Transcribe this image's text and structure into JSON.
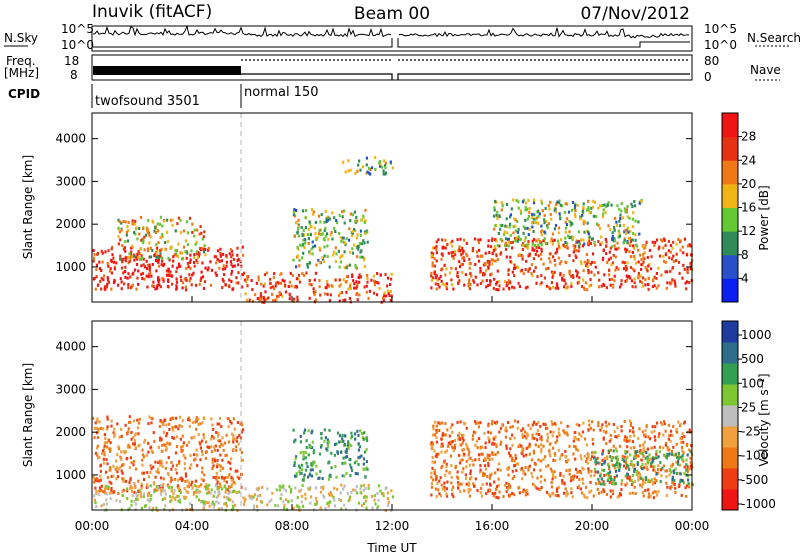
{
  "header": {
    "station": "Inuvik (fitACF)",
    "beam": "Beam 00",
    "date": "07/Nov/2012"
  },
  "status_panels": {
    "nsky_label": "N.Sky",
    "nsearch_label": "N.Search",
    "freq_label_top": "Freq.",
    "freq_label_bottom": "[MHz]",
    "nave_label": "Nave",
    "cpid_label": "CPID",
    "noise_ticks": [
      "10^5",
      "10^0"
    ],
    "noise_ticks_right": [
      "10^5",
      "10^0"
    ],
    "freq_ticks": [
      "18",
      "8"
    ],
    "nave_ticks": [
      "80",
      "0"
    ],
    "cpid_entries": [
      {
        "name": "twofsound 3501",
        "start_hour": 0
      },
      {
        "name": "normal 150",
        "start_hour": 6
      }
    ]
  },
  "chart_data": [
    {
      "type": "heatmap",
      "title": "",
      "ylabel": "Slant Range [km]",
      "xlabel": "",
      "ylim": [
        180,
        4600
      ],
      "xlim": [
        0,
        24
      ],
      "yticks": [
        "1000",
        "2000",
        "3000",
        "4000"
      ],
      "ytick_values": [
        1000,
        2000,
        3000,
        4000
      ],
      "colorbar": {
        "label": "Power [dB]",
        "ticks": [
          "4",
          "8",
          "12",
          "16",
          "20",
          "24",
          "28"
        ],
        "colors": [
          "#0a1ef0",
          "#2850c8",
          "#2e8b57",
          "#64c832",
          "#f0b414",
          "#f07814",
          "#e63214",
          "#f01414"
        ]
      },
      "scatter_regions": [
        {
          "hours": [
            0.0,
            6.0
          ],
          "range_km": [
            500,
            1500
          ],
          "dominant_db": 26
        },
        {
          "hours": [
            1.0,
            4.5
          ],
          "range_km": [
            1200,
            2200
          ],
          "dominant_db": 14
        },
        {
          "hours": [
            6.0,
            12.0
          ],
          "range_km": [
            200,
            900
          ],
          "dominant_db": 22
        },
        {
          "hours": [
            8.0,
            11.0
          ],
          "range_km": [
            1000,
            2400
          ],
          "dominant_db": 12
        },
        {
          "hours": [
            10.0,
            12.0
          ],
          "range_km": [
            3200,
            3600
          ],
          "dominant_db": 10
        },
        {
          "hours": [
            13.5,
            24.0
          ],
          "range_km": [
            500,
            1700
          ],
          "dominant_db": 24
        },
        {
          "hours": [
            16.0,
            22.0
          ],
          "range_km": [
            1500,
            2600
          ],
          "dominant_db": 12
        }
      ]
    },
    {
      "type": "heatmap",
      "title": "",
      "ylabel": "Slant Range [km]",
      "xlabel": "Time UT",
      "ylim": [
        180,
        4600
      ],
      "xlim": [
        0,
        24
      ],
      "yticks": [
        "1000",
        "2000",
        "3000",
        "4000"
      ],
      "ytick_values": [
        1000,
        2000,
        3000,
        4000
      ],
      "xticks": [
        "00:00",
        "04:00",
        "08:00",
        "12:00",
        "16:00",
        "20:00",
        "00:00"
      ],
      "colorbar": {
        "label": "Velocity [m s⁻¹]",
        "ticks": [
          "1000",
          "500",
          "100",
          "25",
          "-25",
          "-100",
          "-500",
          "-1000"
        ],
        "colors": [
          "#1e3ca0",
          "#2e6e8c",
          "#32a050",
          "#7dc832",
          "#bebebe",
          "#f0a03c",
          "#f07814",
          "#f03c14",
          "#f01414"
        ]
      },
      "scatter_regions": [
        {
          "hours": [
            0.0,
            6.0
          ],
          "range_km": [
            600,
            2400
          ],
          "dominant_velocity": -300
        },
        {
          "hours": [
            0.0,
            12.0
          ],
          "range_km": [
            200,
            800
          ],
          "dominant_velocity": 0
        },
        {
          "hours": [
            8.0,
            11.0
          ],
          "range_km": [
            900,
            2100
          ],
          "dominant_velocity": 200
        },
        {
          "hours": [
            13.5,
            24.0
          ],
          "range_km": [
            500,
            2300
          ],
          "dominant_velocity": -300
        },
        {
          "hours": [
            20.0,
            24.0
          ],
          "range_km": [
            800,
            1600
          ],
          "dominant_velocity": 200
        }
      ]
    }
  ]
}
